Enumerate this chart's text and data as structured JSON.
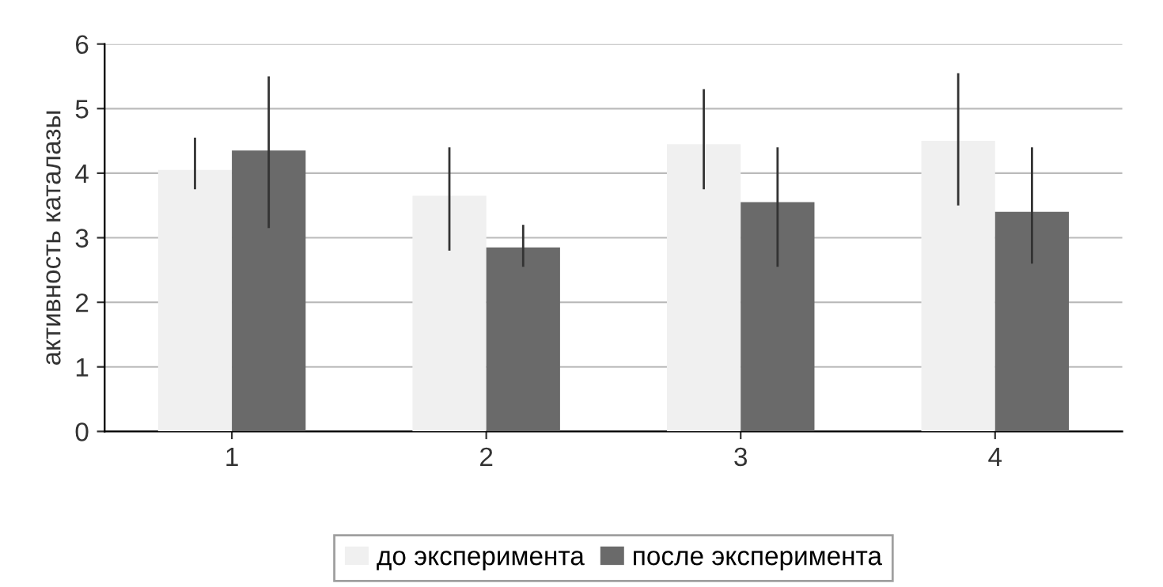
{
  "chart_data": {
    "type": "bar",
    "ylabel": "активность каталазы",
    "categories": [
      "1",
      "2",
      "3",
      "4"
    ],
    "ylim": [
      0,
      6
    ],
    "yticks": [
      0,
      1,
      2,
      3,
      4,
      5,
      6
    ],
    "grid": "y",
    "legend": "bottom",
    "series": [
      {
        "name": "до эксперимента",
        "color": "#f0f0f0",
        "values": [
          4.05,
          3.65,
          4.45,
          4.5
        ],
        "errors": [
          [
            3.75,
            4.55
          ],
          [
            2.8,
            4.4
          ],
          [
            3.75,
            5.3
          ],
          [
            3.5,
            5.55
          ]
        ]
      },
      {
        "name": "после эксперимента",
        "color": "#6a6a6a",
        "values": [
          4.35,
          2.85,
          3.55,
          3.4
        ],
        "errors": [
          [
            3.15,
            5.5
          ],
          [
            2.55,
            3.2
          ],
          [
            2.55,
            4.4
          ],
          [
            2.6,
            4.4
          ]
        ]
      }
    ]
  }
}
